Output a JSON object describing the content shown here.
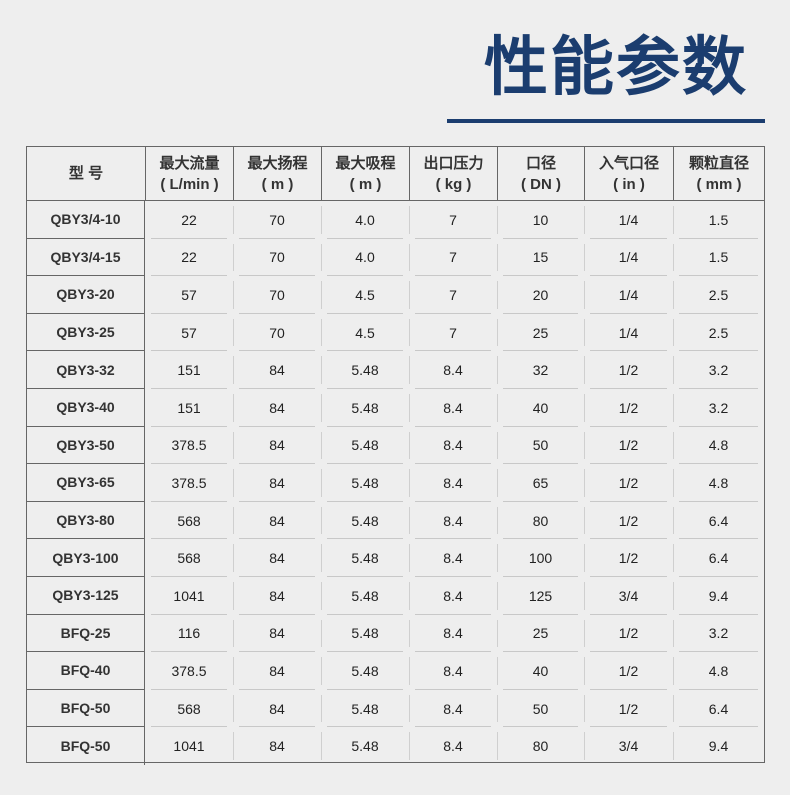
{
  "title": "性能参数",
  "colors": {
    "title": "#1b3d6f",
    "border": "#666666",
    "background": "#eeeeee"
  },
  "table": {
    "headers": [
      {
        "name": "型 号",
        "unit": ""
      },
      {
        "name": "最大流量",
        "unit": "( L/min )"
      },
      {
        "name": "最大扬程",
        "unit": "( m )"
      },
      {
        "name": "最大吸程",
        "unit": "( m )"
      },
      {
        "name": "出口压力",
        "unit": "( kg )"
      },
      {
        "name": "口径",
        "unit": "( DN )"
      },
      {
        "name": "入气口径",
        "unit": "( in )"
      },
      {
        "name": "颗粒直径",
        "unit": "( mm )"
      }
    ],
    "rows": [
      [
        "QBY3/4-10",
        "22",
        "70",
        "4.0",
        "7",
        "10",
        "1/4",
        "1.5"
      ],
      [
        "QBY3/4-15",
        "22",
        "70",
        "4.0",
        "7",
        "15",
        "1/4",
        "1.5"
      ],
      [
        "QBY3-20",
        "57",
        "70",
        "4.5",
        "7",
        "20",
        "1/4",
        "2.5"
      ],
      [
        "QBY3-25",
        "57",
        "70",
        "4.5",
        "7",
        "25",
        "1/4",
        "2.5"
      ],
      [
        "QBY3-32",
        "151",
        "84",
        "5.48",
        "8.4",
        "32",
        "1/2",
        "3.2"
      ],
      [
        "QBY3-40",
        "151",
        "84",
        "5.48",
        "8.4",
        "40",
        "1/2",
        "3.2"
      ],
      [
        "QBY3-50",
        "378.5",
        "84",
        "5.48",
        "8.4",
        "50",
        "1/2",
        "4.8"
      ],
      [
        "QBY3-65",
        "378.5",
        "84",
        "5.48",
        "8.4",
        "65",
        "1/2",
        "4.8"
      ],
      [
        "QBY3-80",
        "568",
        "84",
        "5.48",
        "8.4",
        "80",
        "1/2",
        "6.4"
      ],
      [
        "QBY3-100",
        "568",
        "84",
        "5.48",
        "8.4",
        "100",
        "1/2",
        "6.4"
      ],
      [
        "QBY3-125",
        "1041",
        "84",
        "5.48",
        "8.4",
        "125",
        "3/4",
        "9.4"
      ],
      [
        "BFQ-25",
        "116",
        "84",
        "5.48",
        "8.4",
        "25",
        "1/2",
        "3.2"
      ],
      [
        "BFQ-40",
        "378.5",
        "84",
        "5.48",
        "8.4",
        "40",
        "1/2",
        "4.8"
      ],
      [
        "BFQ-50",
        "568",
        "84",
        "5.48",
        "8.4",
        "50",
        "1/2",
        "6.4"
      ],
      [
        "BFQ-50",
        "1041",
        "84",
        "5.48",
        "8.4",
        "80",
        "3/4",
        "9.4"
      ]
    ]
  }
}
